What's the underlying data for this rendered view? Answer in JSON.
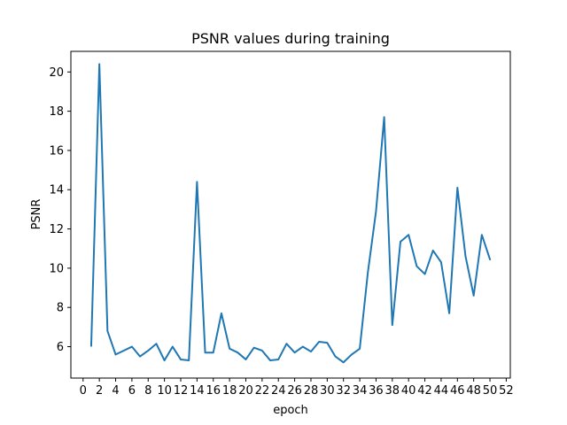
{
  "chart_data": {
    "type": "line",
    "title": "PSNR values during training",
    "xlabel": "epoch",
    "ylabel": "PSNR",
    "xlim": [
      -1.5,
      52.5
    ],
    "ylim": [
      4.4,
      21.05
    ],
    "xticks": [
      0,
      2,
      4,
      6,
      8,
      10,
      12,
      14,
      16,
      18,
      20,
      22,
      24,
      26,
      28,
      30,
      32,
      34,
      36,
      38,
      40,
      42,
      44,
      46,
      48,
      50,
      52
    ],
    "yticks": [
      6,
      8,
      10,
      12,
      14,
      16,
      18,
      20
    ],
    "grid": false,
    "series": [
      {
        "color": "#1f77b4",
        "x": [
          1,
          2,
          3,
          4,
          5,
          6,
          7,
          8,
          9,
          10,
          11,
          12,
          13,
          14,
          15,
          16,
          17,
          18,
          19,
          20,
          21,
          22,
          23,
          24,
          25,
          26,
          27,
          28,
          29,
          30,
          31,
          32,
          33,
          34,
          35,
          36,
          37,
          38,
          39,
          40,
          41,
          42,
          43,
          44,
          45,
          46,
          47,
          48,
          49,
          50
        ],
        "y": [
          6.05,
          20.4,
          6.8,
          5.6,
          5.8,
          6.0,
          5.5,
          5.8,
          6.15,
          5.3,
          6.0,
          5.35,
          5.3,
          14.4,
          5.7,
          5.7,
          7.7,
          5.9,
          5.7,
          5.35,
          5.95,
          5.8,
          5.3,
          5.35,
          6.15,
          5.7,
          6.0,
          5.75,
          6.25,
          6.2,
          5.5,
          5.2,
          5.6,
          5.9,
          9.8,
          12.9,
          17.7,
          7.1,
          11.35,
          11.7,
          10.1,
          9.7,
          10.9,
          10.3,
          7.7,
          14.1,
          10.6,
          8.6,
          11.7,
          10.45
        ]
      }
    ]
  }
}
